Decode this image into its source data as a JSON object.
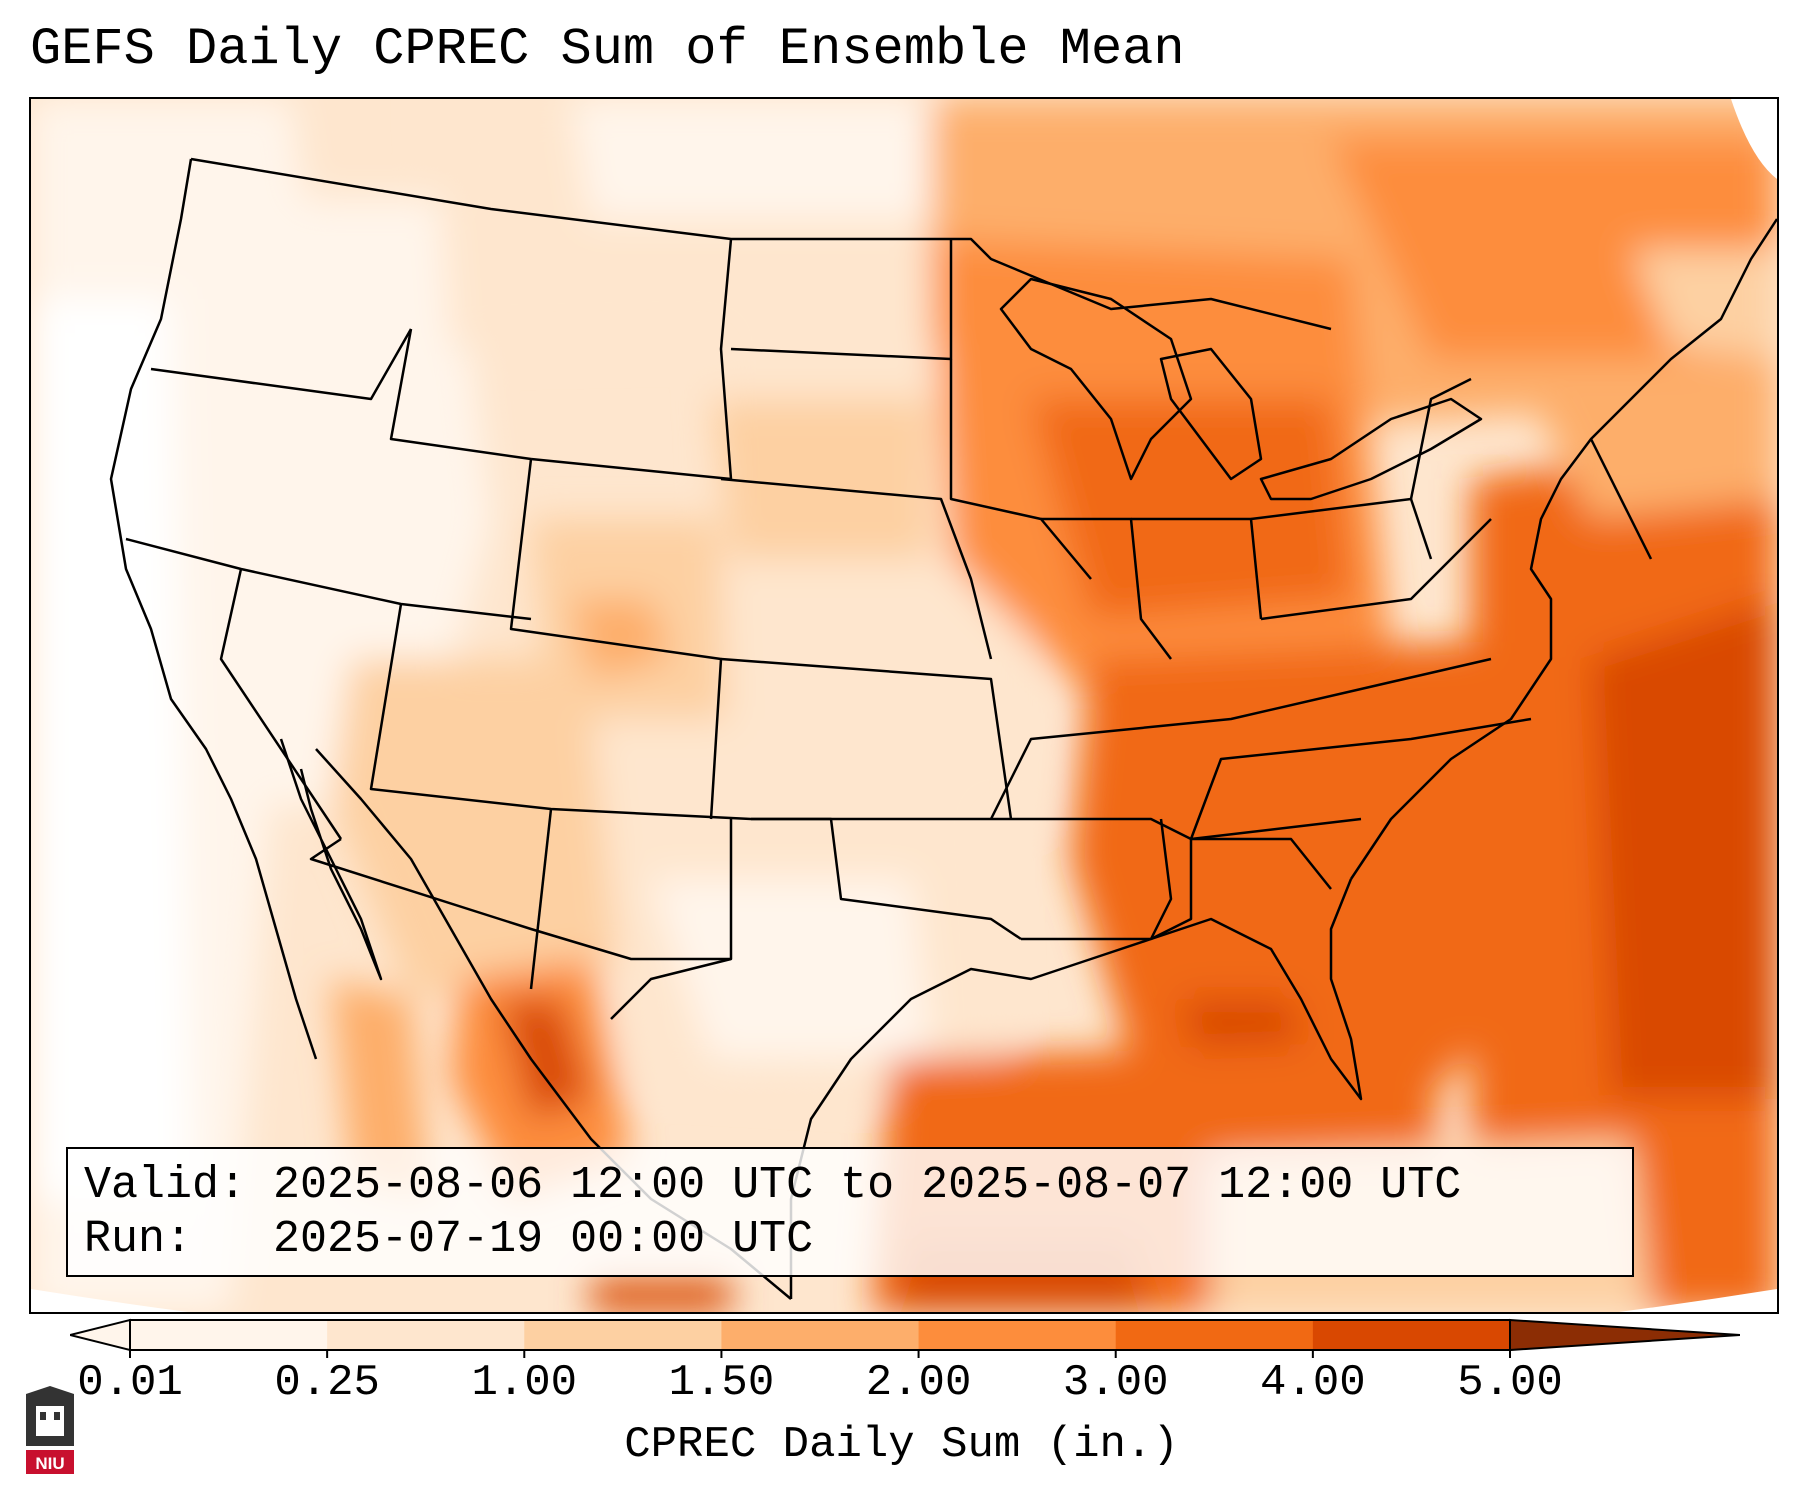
{
  "title": "GEFS Daily CPREC Sum of Ensemble Mean",
  "valid_line": "Valid: 2025-08-06 12:00 UTC to 2025-08-07 12:00 UTC",
  "run_line": "Run:   2025-07-19 00:00 UTC",
  "colorbar": {
    "label": "CPREC Daily Sum (in.)",
    "ticks": [
      "0.01",
      "0.25",
      "1.00",
      "1.50",
      "2.00",
      "3.00",
      "4.00",
      "5.00"
    ],
    "colors": [
      "#fff5eb",
      "#fee6ce",
      "#fdd0a2",
      "#fdae6b",
      "#fd8d3c",
      "#f16913",
      "#d94801",
      "#8c2d04"
    ]
  },
  "logo": {
    "text": "NIU",
    "icon": "niu-castle-logo-icon",
    "accent": "#c8102e"
  }
}
